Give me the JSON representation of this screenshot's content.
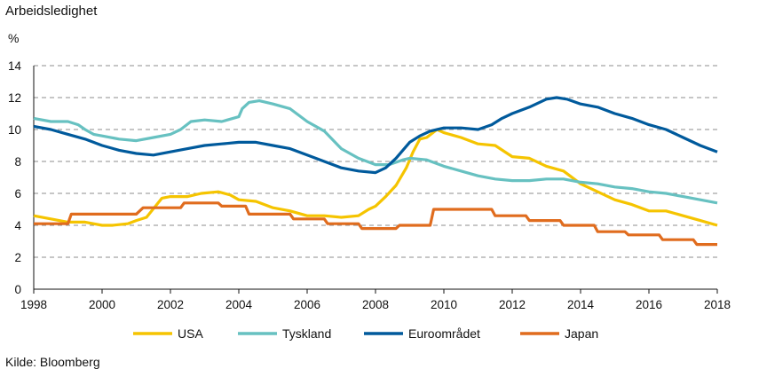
{
  "title": "Arbeidsledighet",
  "unit": "%",
  "source": "Kilde: Bloomberg",
  "chart_data": {
    "type": "line",
    "xlabel": "",
    "ylabel": "%",
    "xlim": [
      1998,
      2018
    ],
    "ylim": [
      0,
      14
    ],
    "x_ticks": [
      "1998",
      "2000",
      "2002",
      "2004",
      "2006",
      "2008",
      "2010",
      "2012",
      "2014",
      "2016",
      "2018"
    ],
    "y_ticks": [
      "0",
      "2",
      "4",
      "6",
      "8",
      "10",
      "12",
      "14"
    ],
    "grid": "horizontal dashed",
    "legend": "bottom",
    "series": [
      {
        "name": "USA",
        "color": "#f5c400",
        "points": [
          [
            1998.0,
            4.6
          ],
          [
            1998.5,
            4.4
          ],
          [
            1999.0,
            4.2
          ],
          [
            1999.5,
            4.2
          ],
          [
            2000.0,
            4.0
          ],
          [
            2000.3,
            4.0
          ],
          [
            2000.75,
            4.1
          ],
          [
            2001.0,
            4.3
          ],
          [
            2001.3,
            4.5
          ],
          [
            2001.75,
            5.7
          ],
          [
            2002.0,
            5.8
          ],
          [
            2002.5,
            5.8
          ],
          [
            2002.9,
            6.0
          ],
          [
            2003.4,
            6.1
          ],
          [
            2003.75,
            5.9
          ],
          [
            2004.0,
            5.6
          ],
          [
            2004.5,
            5.5
          ],
          [
            2005.0,
            5.1
          ],
          [
            2005.5,
            4.9
          ],
          [
            2006.0,
            4.6
          ],
          [
            2006.5,
            4.6
          ],
          [
            2007.0,
            4.5
          ],
          [
            2007.5,
            4.6
          ],
          [
            2007.8,
            5.0
          ],
          [
            2008.0,
            5.2
          ],
          [
            2008.3,
            5.8
          ],
          [
            2008.6,
            6.5
          ],
          [
            2008.9,
            7.6
          ],
          [
            2009.1,
            8.6
          ],
          [
            2009.3,
            9.4
          ],
          [
            2009.5,
            9.5
          ],
          [
            2009.8,
            10.0
          ],
          [
            2010.0,
            9.8
          ],
          [
            2010.5,
            9.5
          ],
          [
            2011.0,
            9.1
          ],
          [
            2011.5,
            9.0
          ],
          [
            2012.0,
            8.3
          ],
          [
            2012.5,
            8.2
          ],
          [
            2013.0,
            7.7
          ],
          [
            2013.5,
            7.4
          ],
          [
            2014.0,
            6.6
          ],
          [
            2014.5,
            6.1
          ],
          [
            2015.0,
            5.6
          ],
          [
            2015.5,
            5.3
          ],
          [
            2016.0,
            4.9
          ],
          [
            2016.5,
            4.9
          ],
          [
            2017.0,
            4.6
          ],
          [
            2017.5,
            4.3
          ],
          [
            2018.0,
            4.0
          ]
        ]
      },
      {
        "name": "Tyskland",
        "color": "#67c1c1",
        "points": [
          [
            1998.0,
            10.7
          ],
          [
            1998.5,
            10.5
          ],
          [
            1999.0,
            10.5
          ],
          [
            1999.3,
            10.3
          ],
          [
            1999.5,
            10.0
          ],
          [
            1999.75,
            9.7
          ],
          [
            2000.0,
            9.6
          ],
          [
            2000.5,
            9.4
          ],
          [
            2001.0,
            9.3
          ],
          [
            2001.5,
            9.5
          ],
          [
            2002.0,
            9.7
          ],
          [
            2002.3,
            10.0
          ],
          [
            2002.6,
            10.5
          ],
          [
            2003.0,
            10.6
          ],
          [
            2003.5,
            10.5
          ],
          [
            2004.0,
            10.8
          ],
          [
            2004.1,
            11.3
          ],
          [
            2004.3,
            11.7
          ],
          [
            2004.6,
            11.8
          ],
          [
            2005.0,
            11.6
          ],
          [
            2005.5,
            11.3
          ],
          [
            2006.0,
            10.5
          ],
          [
            2006.5,
            9.9
          ],
          [
            2007.0,
            8.8
          ],
          [
            2007.5,
            8.2
          ],
          [
            2008.0,
            7.8
          ],
          [
            2008.4,
            7.8
          ],
          [
            2008.8,
            8.1
          ],
          [
            2009.0,
            8.2
          ],
          [
            2009.5,
            8.1
          ],
          [
            2010.0,
            7.7
          ],
          [
            2010.5,
            7.4
          ],
          [
            2011.0,
            7.1
          ],
          [
            2011.5,
            6.9
          ],
          [
            2012.0,
            6.8
          ],
          [
            2012.5,
            6.8
          ],
          [
            2013.0,
            6.9
          ],
          [
            2013.5,
            6.9
          ],
          [
            2014.0,
            6.7
          ],
          [
            2014.5,
            6.6
          ],
          [
            2015.0,
            6.4
          ],
          [
            2015.5,
            6.3
          ],
          [
            2016.0,
            6.1
          ],
          [
            2016.5,
            6.0
          ],
          [
            2017.0,
            5.8
          ],
          [
            2017.5,
            5.6
          ],
          [
            2018.0,
            5.4
          ]
        ]
      },
      {
        "name": "Euroområdet",
        "color": "#005a9c",
        "points": [
          [
            1998.0,
            10.2
          ],
          [
            1998.5,
            10.0
          ],
          [
            1999.0,
            9.7
          ],
          [
            1999.5,
            9.4
          ],
          [
            2000.0,
            9.0
          ],
          [
            2000.5,
            8.7
          ],
          [
            2001.0,
            8.5
          ],
          [
            2001.5,
            8.4
          ],
          [
            2002.0,
            8.6
          ],
          [
            2002.5,
            8.8
          ],
          [
            2003.0,
            9.0
          ],
          [
            2003.5,
            9.1
          ],
          [
            2004.0,
            9.2
          ],
          [
            2004.5,
            9.2
          ],
          [
            2005.0,
            9.0
          ],
          [
            2005.5,
            8.8
          ],
          [
            2006.0,
            8.4
          ],
          [
            2006.5,
            8.0
          ],
          [
            2007.0,
            7.6
          ],
          [
            2007.5,
            7.4
          ],
          [
            2008.0,
            7.3
          ],
          [
            2008.3,
            7.6
          ],
          [
            2008.6,
            8.2
          ],
          [
            2008.8,
            8.7
          ],
          [
            2009.0,
            9.2
          ],
          [
            2009.3,
            9.6
          ],
          [
            2009.6,
            9.9
          ],
          [
            2010.0,
            10.1
          ],
          [
            2010.5,
            10.1
          ],
          [
            2011.0,
            10.0
          ],
          [
            2011.4,
            10.3
          ],
          [
            2011.7,
            10.7
          ],
          [
            2012.0,
            11.0
          ],
          [
            2012.5,
            11.4
          ],
          [
            2013.0,
            11.9
          ],
          [
            2013.3,
            12.0
          ],
          [
            2013.6,
            11.9
          ],
          [
            2014.0,
            11.6
          ],
          [
            2014.5,
            11.4
          ],
          [
            2015.0,
            11.0
          ],
          [
            2015.5,
            10.7
          ],
          [
            2016.0,
            10.3
          ],
          [
            2016.5,
            10.0
          ],
          [
            2017.0,
            9.5
          ],
          [
            2017.5,
            9.0
          ],
          [
            2018.0,
            8.6
          ]
        ]
      },
      {
        "name": "Japan",
        "color": "#e06c1e",
        "points": [
          [
            1998.0,
            4.1
          ],
          [
            1999.0,
            4.1
          ],
          [
            1999.1,
            4.7
          ],
          [
            2000.5,
            4.7
          ],
          [
            2001.0,
            4.7
          ],
          [
            2001.2,
            5.1
          ],
          [
            2002.3,
            5.1
          ],
          [
            2002.4,
            5.4
          ],
          [
            2003.4,
            5.4
          ],
          [
            2003.5,
            5.2
          ],
          [
            2004.2,
            5.2
          ],
          [
            2004.3,
            4.7
          ],
          [
            2005.5,
            4.7
          ],
          [
            2005.6,
            4.4
          ],
          [
            2006.5,
            4.4
          ],
          [
            2006.6,
            4.1
          ],
          [
            2007.5,
            4.1
          ],
          [
            2007.6,
            3.8
          ],
          [
            2008.6,
            3.8
          ],
          [
            2008.7,
            4.0
          ],
          [
            2009.6,
            4.0
          ],
          [
            2009.7,
            5.0
          ],
          [
            2011.4,
            5.0
          ],
          [
            2011.5,
            4.6
          ],
          [
            2012.4,
            4.6
          ],
          [
            2012.5,
            4.3
          ],
          [
            2013.4,
            4.3
          ],
          [
            2013.5,
            4.0
          ],
          [
            2014.4,
            4.0
          ],
          [
            2014.5,
            3.6
          ],
          [
            2015.3,
            3.6
          ],
          [
            2015.4,
            3.4
          ],
          [
            2016.3,
            3.4
          ],
          [
            2016.4,
            3.1
          ],
          [
            2017.3,
            3.1
          ],
          [
            2017.4,
            2.8
          ],
          [
            2018.0,
            2.8
          ]
        ]
      }
    ]
  }
}
